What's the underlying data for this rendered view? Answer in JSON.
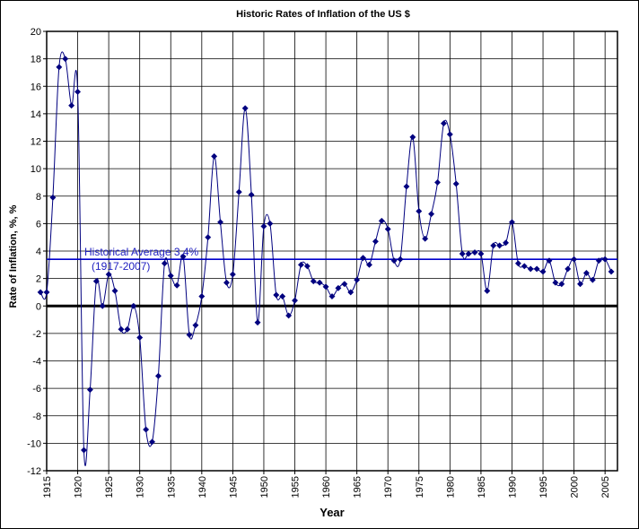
{
  "chart_data": {
    "type": "line",
    "title": "Historic Rates of Inflation of the US $",
    "xlabel": "Year",
    "ylabel": "Rate of Inflation, %, %",
    "xlim": [
      1915,
      2007
    ],
    "ylim": [
      -12,
      20
    ],
    "x_ticks": [
      1915,
      1920,
      1925,
      1930,
      1935,
      1940,
      1945,
      1950,
      1955,
      1960,
      1965,
      1970,
      1975,
      1980,
      1985,
      1990,
      1995,
      2000,
      2005
    ],
    "y_ticks": [
      -12,
      -10,
      -8,
      -6,
      -4,
      -2,
      0,
      2,
      4,
      6,
      8,
      10,
      12,
      14,
      16,
      18,
      20
    ],
    "grid": true,
    "series": [
      {
        "color": "#00007f",
        "x": [
          1914,
          1915,
          1916,
          1917,
          1918,
          1919,
          1920,
          1921,
          1922,
          1923,
          1924,
          1925,
          1926,
          1927,
          1928,
          1929,
          1930,
          1931,
          1932,
          1933,
          1934,
          1935,
          1936,
          1937,
          1938,
          1939,
          1940,
          1941,
          1942,
          1943,
          1944,
          1945,
          1946,
          1947,
          1948,
          1949,
          1950,
          1951,
          1952,
          1953,
          1954,
          1955,
          1956,
          1957,
          1958,
          1959,
          1960,
          1961,
          1962,
          1963,
          1964,
          1965,
          1966,
          1967,
          1968,
          1969,
          1970,
          1971,
          1972,
          1973,
          1974,
          1975,
          1976,
          1977,
          1978,
          1979,
          1980,
          1981,
          1982,
          1983,
          1984,
          1985,
          1986,
          1987,
          1988,
          1989,
          1990,
          1991,
          1992,
          1993,
          1994,
          1995,
          1996,
          1997,
          1998,
          1999,
          2000,
          2001,
          2002,
          2003,
          2004,
          2005,
          2006
        ],
        "y": [
          1.0,
          1.0,
          7.9,
          17.4,
          18.0,
          14.6,
          15.6,
          -10.5,
          -6.1,
          1.8,
          0.0,
          2.3,
          1.1,
          -1.7,
          -1.7,
          0.0,
          -2.3,
          -9.0,
          -9.9,
          -5.1,
          3.1,
          2.2,
          1.5,
          3.6,
          -2.1,
          -1.4,
          0.7,
          5.0,
          10.9,
          6.1,
          1.7,
          2.3,
          8.3,
          14.4,
          8.1,
          -1.2,
          5.8,
          6.0,
          0.8,
          0.7,
          -0.7,
          0.4,
          3.0,
          2.9,
          1.8,
          1.7,
          1.4,
          0.7,
          1.3,
          1.6,
          1.0,
          1.9,
          3.5,
          3.0,
          4.7,
          6.2,
          5.6,
          3.3,
          3.4,
          8.7,
          12.3,
          6.9,
          4.9,
          6.7,
          9.0,
          13.3,
          12.5,
          8.9,
          3.8,
          3.8,
          3.9,
          3.8,
          1.1,
          4.4,
          4.4,
          4.6,
          6.1,
          3.1,
          2.9,
          2.7,
          2.7,
          2.5,
          3.3,
          1.7,
          1.6,
          2.7,
          3.4,
          1.6,
          2.4,
          1.9,
          3.3,
          3.4,
          2.5
        ]
      }
    ],
    "reference_line": {
      "value": 3.4,
      "color": "#0000cc",
      "label_line1": "Historical Average 3.4%",
      "label_line2": "(1917-2007)"
    },
    "zero_line": {
      "value": 0,
      "color": "#000000"
    }
  }
}
